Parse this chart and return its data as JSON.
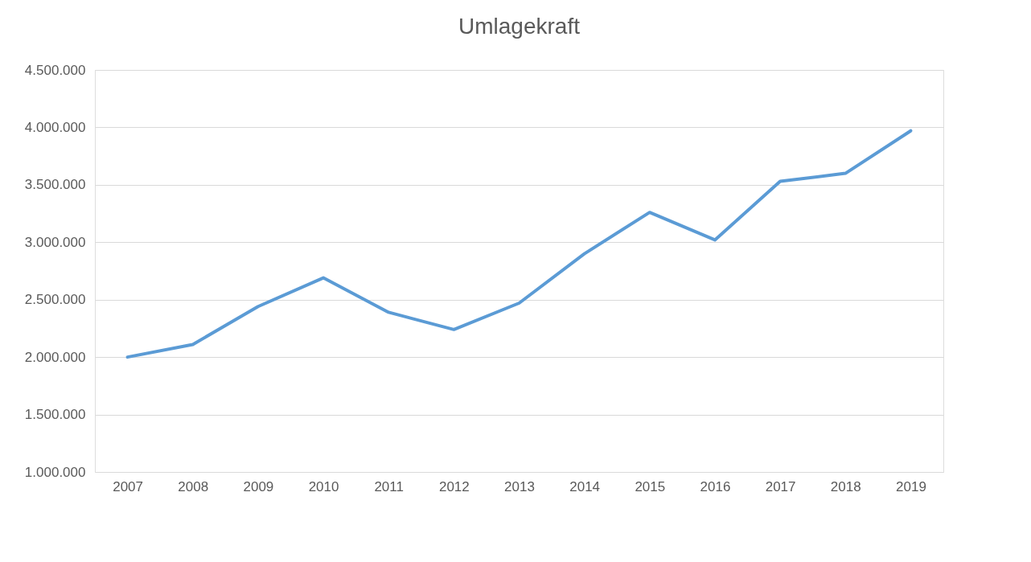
{
  "chart_data": {
    "type": "line",
    "title": "Umlagekraft",
    "categories": [
      "2007",
      "2008",
      "2009",
      "2010",
      "2011",
      "2012",
      "2013",
      "2014",
      "2015",
      "2016",
      "2017",
      "2018",
      "2019"
    ],
    "series": [
      {
        "color": "#5b9bd5",
        "values": [
          2000000,
          2110000,
          2440000,
          2690000,
          2390000,
          2240000,
          2470000,
          2900000,
          3260000,
          3020000,
          3530000,
          3600000,
          3970000
        ]
      }
    ],
    "ylim": [
      1000000,
      4500000
    ],
    "yticks": [
      {
        "value": 1000000,
        "label": "1.000.000"
      },
      {
        "value": 1500000,
        "label": "1.500.000"
      },
      {
        "value": 2000000,
        "label": "2.000.000"
      },
      {
        "value": 2500000,
        "label": "2.500.000"
      },
      {
        "value": 3000000,
        "label": "3.000.000"
      },
      {
        "value": 3500000,
        "label": "3.500.000"
      },
      {
        "value": 4000000,
        "label": "4.000.000"
      },
      {
        "value": 4500000,
        "label": "4.500.000"
      }
    ],
    "grid": "y",
    "legend": false,
    "marker": "none",
    "line_style": "solid"
  }
}
